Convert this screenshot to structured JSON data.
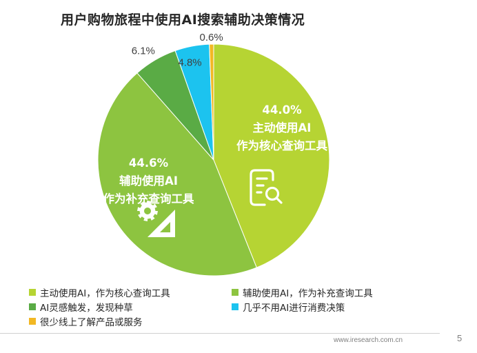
{
  "title": "用户购物旅程中使用AI搜索辅助决策情况",
  "chart_data": {
    "type": "pie",
    "title": "用户购物旅程中使用AI搜索辅助决策情况",
    "slices": [
      {
        "name": "主动使用AI，作为核心查询工具",
        "value": 44.0,
        "label": "44.0%",
        "inner_lines": [
          "主动使用AI",
          "作为核心查询工具"
        ],
        "color": "#b6d433"
      },
      {
        "name": "辅助使用AI，作为补充查询工具",
        "value": 44.6,
        "label": "44.6%",
        "inner_lines": [
          "辅助使用AI",
          "作为补充查询工具"
        ],
        "color": "#8dc440"
      },
      {
        "name": "AI灵感触发，发现种草",
        "value": 6.1,
        "label": "6.1%",
        "color": "#5aab45"
      },
      {
        "name": "几乎不用AI进行消费决策",
        "value": 4.8,
        "label": "4.8%",
        "color": "#1cc3ef"
      },
      {
        "name": "很少线上了解产品或服务",
        "value": 0.6,
        "label": "0.6%",
        "color": "#f2b824"
      }
    ],
    "legend_position": "bottom"
  },
  "legend": {
    "items": [
      {
        "label": "主动使用AI，作为核心查询工具",
        "color": "#b6d433"
      },
      {
        "label": "辅助使用AI，作为补充查询工具",
        "color": "#8dc440"
      },
      {
        "label": "AI灵感触发，发现种草",
        "color": "#5aab45"
      },
      {
        "label": "几乎不用AI进行消费决策",
        "color": "#1cc3ef"
      },
      {
        "label": "很少线上了解产品或服务",
        "color": "#f2b824"
      }
    ]
  },
  "footer": {
    "url": "www.iresearch.com.cn",
    "page_number": "5"
  },
  "icons": {
    "core_query": "search-document-icon",
    "supplementary_query": "gear-triangle-icon"
  }
}
